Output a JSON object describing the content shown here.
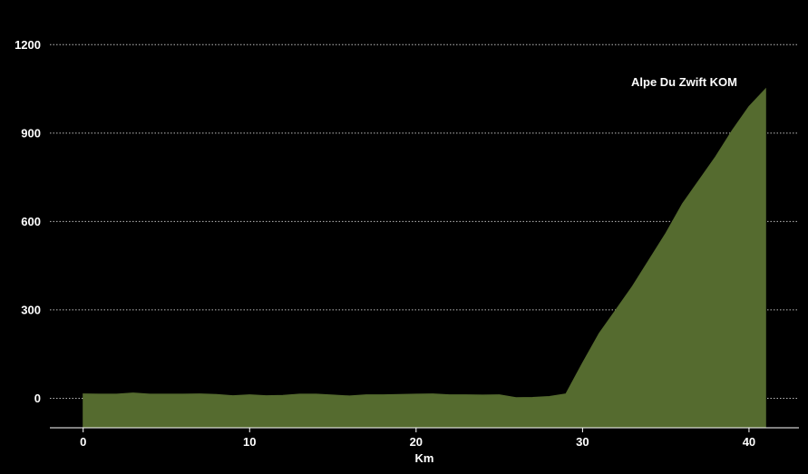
{
  "chart_data": {
    "type": "area",
    "title": "",
    "xlabel": "Km",
    "ylabel": "",
    "xlim": [
      -2,
      43
    ],
    "ylim": [
      -100,
      1290
    ],
    "xticks": [
      0,
      10,
      20,
      30,
      40
    ],
    "yticks": [
      0,
      300,
      600,
      900,
      1200
    ],
    "grid": "horizontal-dotted",
    "legend": "none",
    "annotation": "Alpe Du Zwift KOM",
    "colors": {
      "background": "#000000",
      "fill": "#556b2f",
      "grid": "#bbbbbb",
      "text": "#ffffff",
      "axis": "#ffffff"
    },
    "series": [
      {
        "x": [
          0,
          1,
          2,
          3,
          4,
          5,
          6,
          7,
          8,
          9,
          10,
          11,
          12,
          13,
          14,
          15,
          16,
          17,
          18,
          19,
          20,
          21,
          22,
          23,
          24,
          25,
          26,
          27,
          28,
          29,
          30,
          31,
          32,
          33,
          34,
          35,
          36,
          37,
          38,
          39,
          40,
          41
        ],
        "values": [
          15,
          14,
          14,
          18,
          14,
          14,
          14,
          15,
          13,
          9,
          12,
          9,
          10,
          14,
          14,
          11,
          8,
          12,
          12,
          13,
          14,
          15,
          12,
          12,
          11,
          12,
          2,
          3,
          6,
          15,
          120,
          220,
          300,
          380,
          470,
          560,
          660,
          740,
          820,
          910,
          990,
          1050
        ]
      }
    ]
  }
}
